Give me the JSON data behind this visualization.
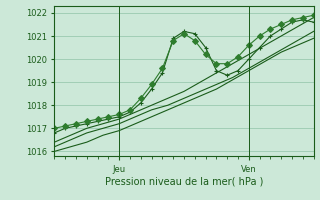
{
  "title": "",
  "xlabel": "Pression niveau de la mer( hPa )",
  "ylabel": "",
  "bg_color": "#cce8d8",
  "plot_bg_color": "#cce8d8",
  "grid_color": "#90c4a8",
  "line_color_dark": "#1a5c1a",
  "line_color_mid": "#2e7d2e",
  "ylim": [
    1015.8,
    1022.3
  ],
  "xlim": [
    0,
    48
  ],
  "xtick_positions": [
    12,
    36
  ],
  "xtick_labels": [
    "Jeu",
    "Ven"
  ],
  "ytick_positions": [
    1016,
    1017,
    1018,
    1019,
    1020,
    1021,
    1022
  ],
  "vline_positions": [
    12,
    36
  ],
  "series": [
    {
      "x": [
        0,
        3,
        6,
        9,
        12,
        15,
        18,
        21,
        24,
        27,
        30,
        33,
        36,
        39,
        42,
        45,
        48
      ],
      "y": [
        1016.2,
        1016.5,
        1016.8,
        1017.0,
        1017.2,
        1017.5,
        1017.8,
        1018.0,
        1018.3,
        1018.6,
        1018.9,
        1019.2,
        1019.6,
        1020.0,
        1020.4,
        1020.8,
        1021.2
      ],
      "color": "#1a5c1a",
      "marker": null,
      "lw": 0.8
    },
    {
      "x": [
        0,
        3,
        6,
        9,
        12,
        15,
        18,
        21,
        24,
        27,
        30,
        33,
        36,
        39,
        42,
        45,
        48
      ],
      "y": [
        1016.4,
        1016.7,
        1017.0,
        1017.2,
        1017.4,
        1017.7,
        1018.0,
        1018.3,
        1018.6,
        1019.0,
        1019.4,
        1019.8,
        1020.2,
        1020.6,
        1021.0,
        1021.4,
        1021.8
      ],
      "color": "#1a5c1a",
      "marker": null,
      "lw": 0.8
    },
    {
      "x": [
        0,
        2,
        4,
        6,
        8,
        10,
        12,
        14,
        16,
        18,
        20,
        22,
        24,
        26,
        28,
        30,
        32,
        34,
        36,
        38,
        40,
        42,
        44,
        46,
        48
      ],
      "y": [
        1016.8,
        1017.0,
        1017.1,
        1017.2,
        1017.3,
        1017.4,
        1017.5,
        1017.7,
        1018.1,
        1018.7,
        1019.4,
        1020.9,
        1021.2,
        1021.1,
        1020.5,
        1019.5,
        1019.3,
        1019.5,
        1020.0,
        1020.5,
        1021.0,
        1021.3,
        1021.6,
        1021.7,
        1021.6
      ],
      "color": "#1a5c1a",
      "marker": "+",
      "lw": 0.8
    },
    {
      "x": [
        0,
        2,
        4,
        6,
        8,
        10,
        12,
        14,
        16,
        18,
        20,
        22,
        24,
        26,
        28,
        30,
        32,
        34,
        36,
        38,
        40,
        42,
        44,
        46,
        48
      ],
      "y": [
        1017.0,
        1017.1,
        1017.2,
        1017.3,
        1017.4,
        1017.5,
        1017.6,
        1017.8,
        1018.3,
        1018.9,
        1019.6,
        1020.8,
        1021.1,
        1020.8,
        1020.2,
        1019.8,
        1019.8,
        1020.1,
        1020.6,
        1021.0,
        1021.3,
        1021.5,
        1021.7,
        1021.8,
        1021.9
      ],
      "color": "#2e7d2e",
      "marker": "D",
      "lw": 0.8
    },
    {
      "x": [
        0,
        3,
        6,
        9,
        12,
        15,
        18,
        21,
        24,
        27,
        30,
        33,
        36,
        39,
        42,
        45,
        48
      ],
      "y": [
        1016.0,
        1016.2,
        1016.4,
        1016.7,
        1016.9,
        1017.2,
        1017.5,
        1017.8,
        1018.1,
        1018.4,
        1018.7,
        1019.1,
        1019.5,
        1019.9,
        1020.3,
        1020.6,
        1020.9
      ],
      "color": "#1a5c1a",
      "marker": null,
      "lw": 0.8
    }
  ]
}
